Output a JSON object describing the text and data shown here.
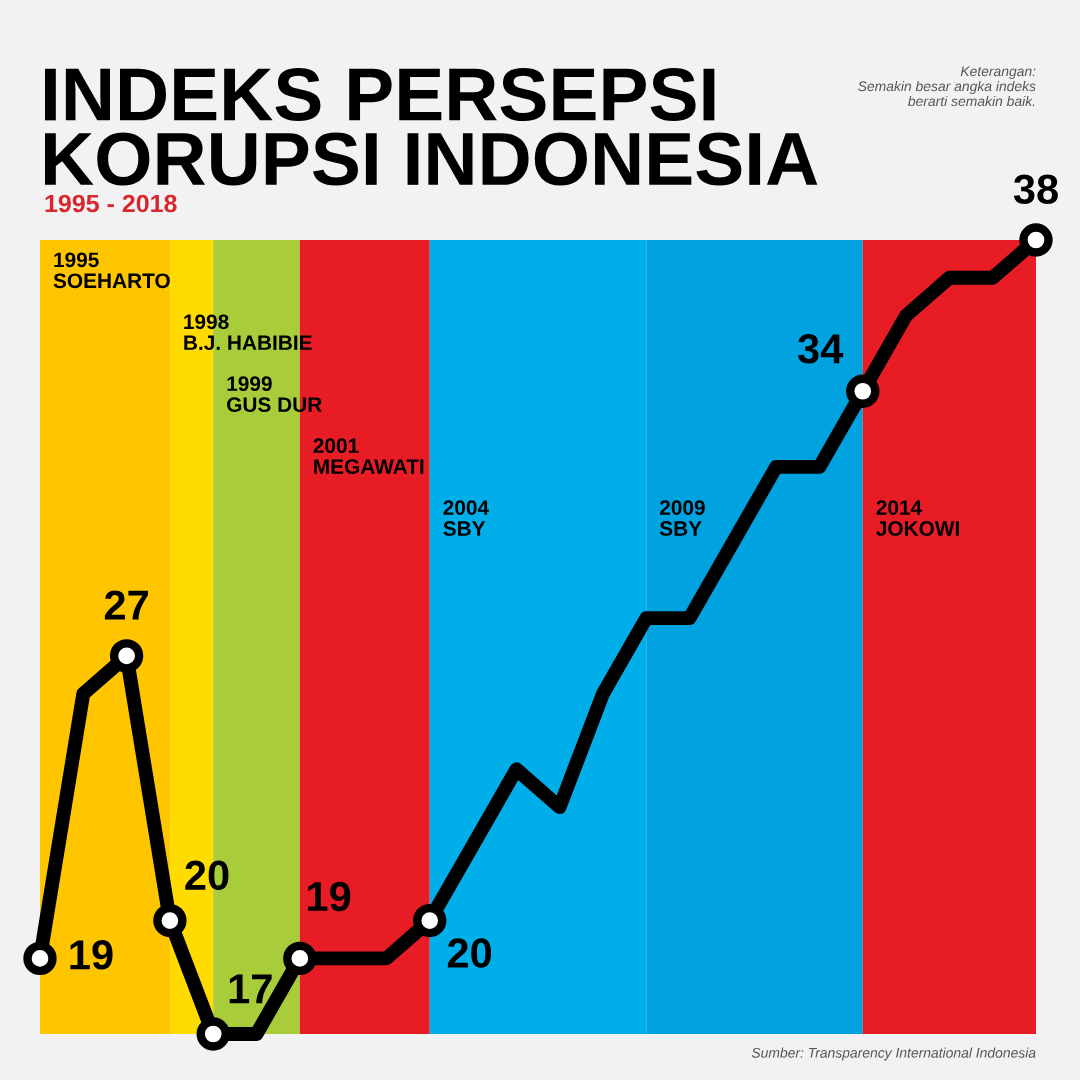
{
  "chart_data": {
    "type": "line",
    "title": "INDEKS PERSEPSI\nKORUPSI INDONESIA",
    "subtitle": "1995 - 2018",
    "categories": [
      null,
      null,
      null,
      null,
      null,
      null,
      null,
      null,
      null,
      null,
      null,
      null,
      null,
      null,
      null,
      null,
      null,
      null,
      null,
      null,
      null,
      null,
      null,
      null
    ],
    "series": [
      {
        "color": "#000000",
        "values": [
          19,
          26,
          27,
          20,
          17,
          17,
          19,
          19,
          19,
          20,
          22,
          24,
          23,
          26,
          28,
          28,
          30,
          32,
          32,
          34,
          36,
          37,
          37,
          38
        ],
        "value_labels": [
          "19",
          null,
          "27",
          "20",
          "17",
          null,
          "19",
          null,
          null,
          "20",
          null,
          null,
          null,
          null,
          null,
          null,
          null,
          null,
          null,
          "34",
          null,
          null,
          null,
          "38"
        ]
      }
    ],
    "line_style": "solid",
    "annotations": [
      "1995\nSOEHARTO",
      "1998\nB.J. HABIBIE",
      "1999\nGUS DUR",
      "2001\nMEGAWATI",
      "2004\nSBY",
      "2009\nSBY",
      "2014\nJOKOWI",
      "Keterangan:\nSemakin besar angka indeks\nberarti semakin baik.",
      "Sumber: Transparency International Indonesia"
    ]
  }
}
